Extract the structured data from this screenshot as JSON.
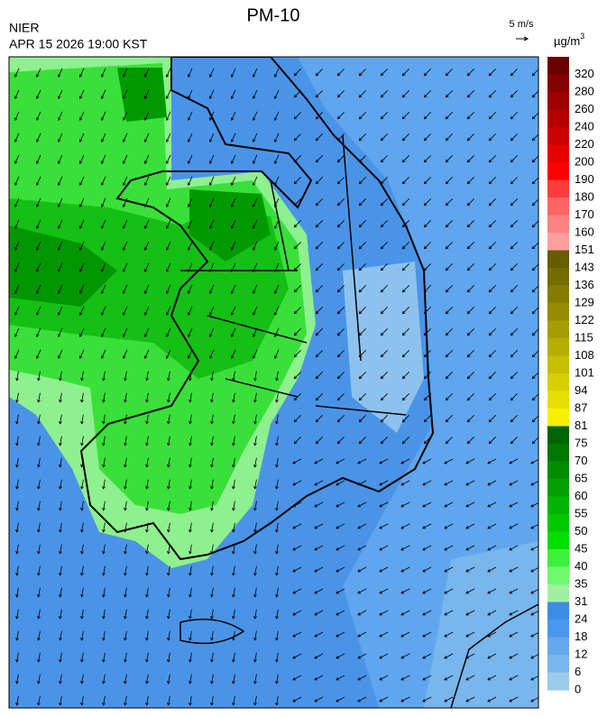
{
  "header": {
    "title": "PM-10",
    "agency": "NIER",
    "timestamp": "APR 15 2026 19:00 KST",
    "wind_scale": "5 m/s",
    "unit": "µg/m",
    "unit_sup": "3"
  },
  "legend": {
    "levels": [
      {
        "label": 320,
        "color": "#6b0000"
      },
      {
        "label": 280,
        "color": "#850000"
      },
      {
        "label": 260,
        "color": "#9e0000"
      },
      {
        "label": 240,
        "color": "#b50000"
      },
      {
        "label": 220,
        "color": "#cc0000"
      },
      {
        "label": 200,
        "color": "#e60000"
      },
      {
        "label": 190,
        "color": "#ff0000"
      },
      {
        "label": 180,
        "color": "#ff3c3c"
      },
      {
        "label": 170,
        "color": "#ff6464"
      },
      {
        "label": 160,
        "color": "#ff8282"
      },
      {
        "label": 151,
        "color": "#ff9e9e"
      },
      {
        "label": 143,
        "color": "#665c00"
      },
      {
        "label": 136,
        "color": "#756c00"
      },
      {
        "label": 129,
        "color": "#857c00"
      },
      {
        "label": 122,
        "color": "#958c00"
      },
      {
        "label": 115,
        "color": "#a69e00"
      },
      {
        "label": 108,
        "color": "#b5ad00"
      },
      {
        "label": 101,
        "color": "#c6be00"
      },
      {
        "label": 94,
        "color": "#d6d000"
      },
      {
        "label": 87,
        "color": "#e4e000"
      },
      {
        "label": 81,
        "color": "#f5f000"
      },
      {
        "label": 75,
        "color": "#006400"
      },
      {
        "label": 70,
        "color": "#007800"
      },
      {
        "label": 65,
        "color": "#008c00"
      },
      {
        "label": 60,
        "color": "#00a000"
      },
      {
        "label": 55,
        "color": "#00b400"
      },
      {
        "label": 50,
        "color": "#00c800"
      },
      {
        "label": 45,
        "color": "#00e000"
      },
      {
        "label": 40,
        "color": "#3cf03c"
      },
      {
        "label": 35,
        "color": "#6efa6e"
      },
      {
        "label": 31,
        "color": "#a0f0a0"
      },
      {
        "label": 24,
        "color": "#3c8ce6"
      },
      {
        "label": 18,
        "color": "#4a98ea"
      },
      {
        "label": 12,
        "color": "#64a8ee"
      },
      {
        "label": 6,
        "color": "#78b6ec"
      },
      {
        "label": 0,
        "color": "#9ccaec"
      }
    ]
  }
}
